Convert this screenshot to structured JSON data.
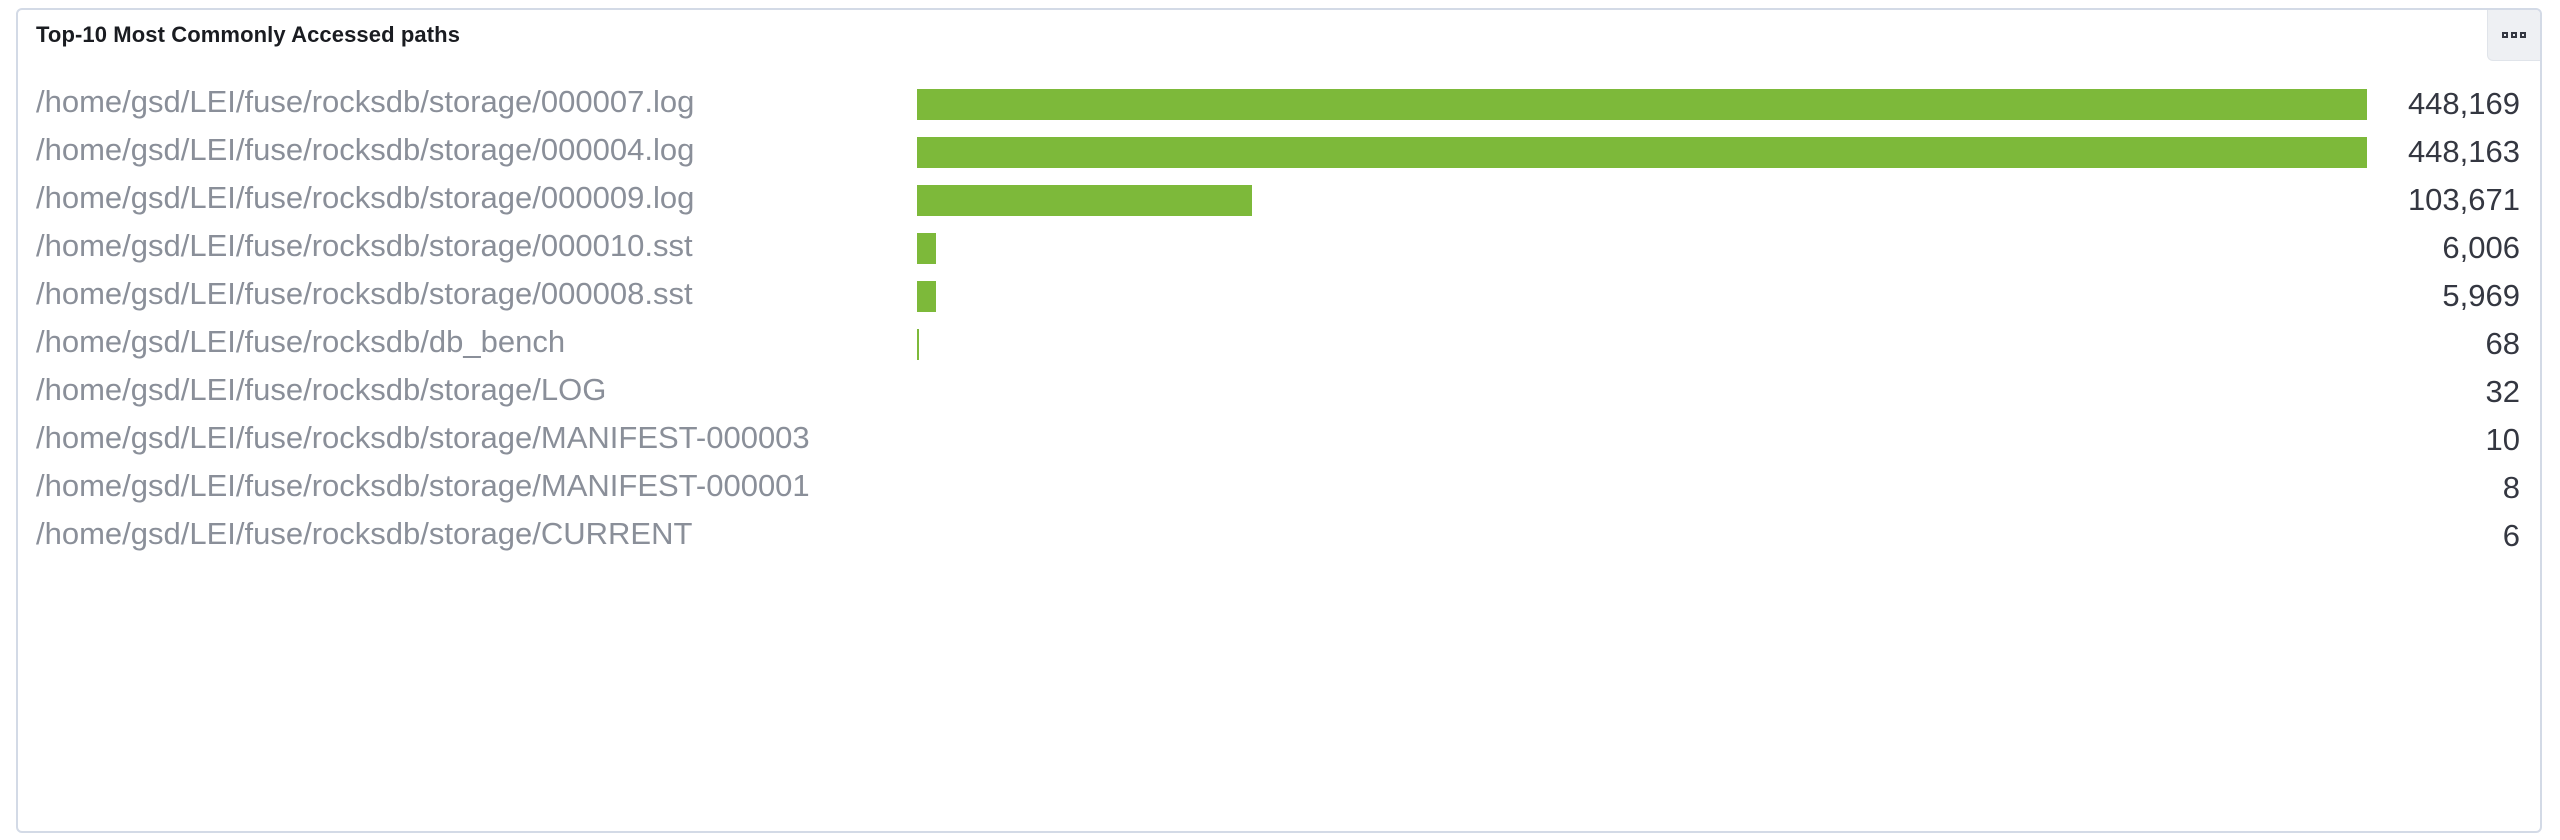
{
  "panel": {
    "title": "Top-10 Most Commonly Accessed paths",
    "options_icon": "options-icon"
  },
  "colors": {
    "bar": "#7db93a",
    "label": "#8a8f99",
    "value": "#343741"
  },
  "chart_data": {
    "type": "bar",
    "orientation": "horizontal",
    "title": "Top-10 Most Commonly Accessed paths",
    "categories": [
      "/home/gsd/LEI/fuse/rocksdb/storage/000007.log",
      "/home/gsd/LEI/fuse/rocksdb/storage/000004.log",
      "/home/gsd/LEI/fuse/rocksdb/storage/000009.log",
      "/home/gsd/LEI/fuse/rocksdb/storage/000010.sst",
      "/home/gsd/LEI/fuse/rocksdb/storage/000008.sst",
      "/home/gsd/LEI/fuse/rocksdb/db_bench",
      "/home/gsd/LEI/fuse/rocksdb/storage/LOG",
      "/home/gsd/LEI/fuse/rocksdb/storage/MANIFEST-000003",
      "/home/gsd/LEI/fuse/rocksdb/storage/MANIFEST-000001",
      "/home/gsd/LEI/fuse/rocksdb/storage/CURRENT"
    ],
    "values": [
      448169,
      448163,
      103671,
      6006,
      5969,
      68,
      32,
      10,
      8,
      6
    ],
    "value_labels": [
      "448,169",
      "448,163",
      "103,671",
      "6,006",
      "5,969",
      "68",
      "32",
      "10",
      "8",
      "6"
    ],
    "xlim": [
      0,
      448169
    ],
    "grid": false,
    "legend": false
  }
}
